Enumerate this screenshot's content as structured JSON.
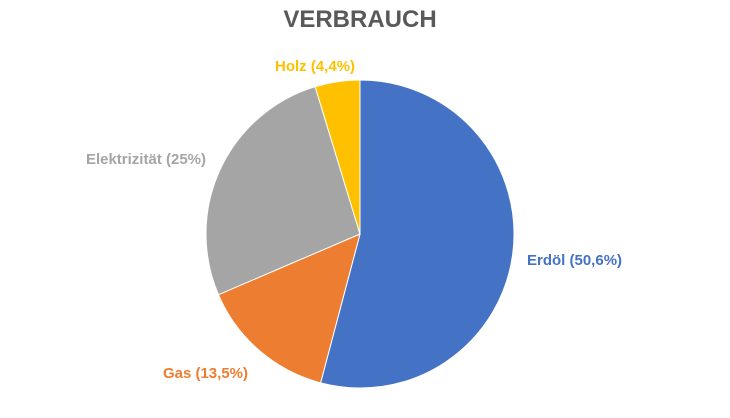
{
  "chart_data": {
    "type": "pie",
    "title": "VERBRAUCH",
    "categories": [
      "Erdöl",
      "Gas",
      "Elektrizität",
      "Holz"
    ],
    "values": [
      50.6,
      13.5,
      25,
      4.4
    ],
    "labels": [
      "Erdöl (50,6%)",
      "Gas (13,5%)",
      "Elektrizität (25%)",
      "Holz (4,4%)"
    ],
    "colors": [
      "#4472C4",
      "#ED7D31",
      "#A5A5A5",
      "#FFC000"
    ],
    "start": "12 o'clock",
    "direction": "clockwise",
    "legend": "none"
  }
}
